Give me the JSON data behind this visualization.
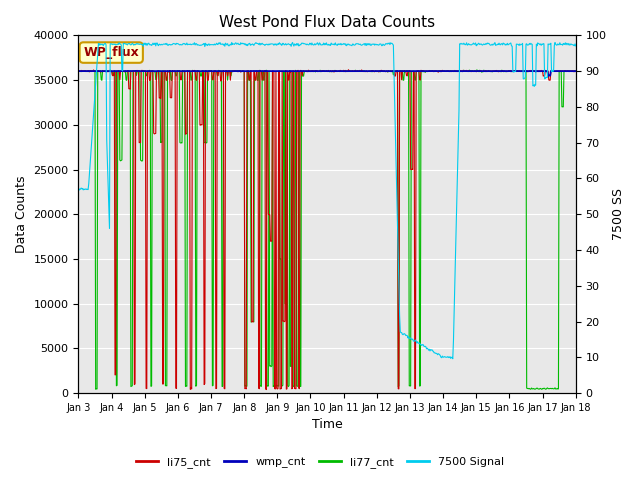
{
  "title": "West Pond Flux Data Counts",
  "xlabel": "Time",
  "ylabel_left": "Data Counts",
  "ylabel_right": "7500 SS",
  "ylim_left": [
    0,
    40000
  ],
  "ylim_right": [
    0,
    100
  ],
  "yticks_left": [
    0,
    5000,
    10000,
    15000,
    20000,
    25000,
    30000,
    35000,
    40000
  ],
  "yticks_right": [
    0,
    10,
    20,
    30,
    40,
    50,
    60,
    70,
    80,
    90,
    100
  ],
  "xtick_labels": [
    "Jan 3",
    "Jan 4",
    "Jan 5",
    "Jan 6",
    "Jan 7",
    "Jan 8",
    "Jan 9",
    "Jan 10",
    "Jan 11",
    "Jan 12",
    "Jan 13",
    "Jan 14",
    "Jan 15",
    "Jan 16",
    "Jan 17",
    "Jan 18"
  ],
  "colors": {
    "li75_cnt": "#cc0000",
    "wmp_cnt": "#0000bb",
    "li77_cnt": "#00bb00",
    "signal_7500": "#00ccee",
    "plot_bg": "#e8e8e8",
    "fig_bg": "#ffffff",
    "grid": "#ffffff"
  },
  "legend_label": "WP_flux",
  "linewidth": 0.8,
  "base_count": 36000,
  "signal_base": 97.5
}
